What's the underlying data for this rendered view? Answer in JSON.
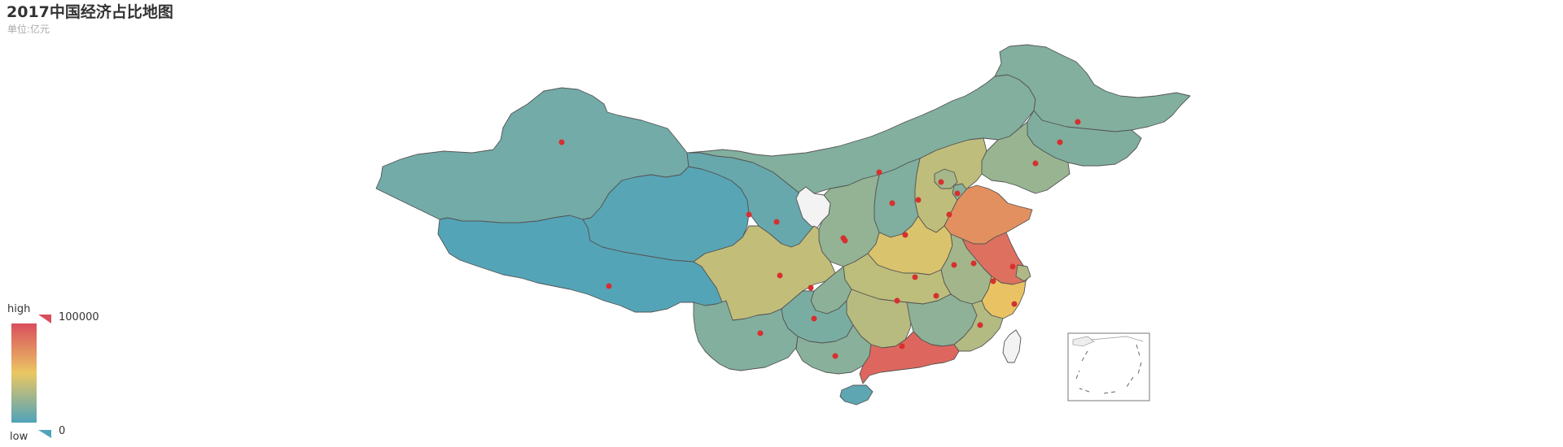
{
  "title": "2017中国经济占比地图",
  "subtitle": "单位:亿元",
  "visual_map": {
    "high_label": "high",
    "low_label": "low",
    "max_value": "100000",
    "min_value": "0",
    "colors": [
      "#50a3ba",
      "#eac763",
      "#d94e5d"
    ]
  },
  "colors": {
    "no_data": "#f3f3f3",
    "border": "#555555",
    "marker": "#d6302f",
    "inset_box": "#777777"
  },
  "regions": [
    {
      "id": "xinjiang",
      "value": 10882
    },
    {
      "id": "tibet",
      "value": 1311
    },
    {
      "id": "qinghai",
      "value": 2625
    },
    {
      "id": "gansu",
      "value": 7460
    },
    {
      "id": "ningxia",
      "value": null
    },
    {
      "id": "inner-mongolia",
      "value": 16103
    },
    {
      "id": "heilongjiang",
      "value": 16200
    },
    {
      "id": "jilin",
      "value": 15289
    },
    {
      "id": "liaoning",
      "value": 23409
    },
    {
      "id": "hebei",
      "value": 35964
    },
    {
      "id": "beijing",
      "value": 28015
    },
    {
      "id": "tianjin",
      "value": 18549
    },
    {
      "id": "shanxi",
      "value": 15528
    },
    {
      "id": "shaanxi",
      "value": 21899
    },
    {
      "id": "shandong",
      "value": 72634
    },
    {
      "id": "henan",
      "value": 44553
    },
    {
      "id": "jiangsu",
      "value": 85870
    },
    {
      "id": "anhui",
      "value": 27018
    },
    {
      "id": "shanghai",
      "value": 30633
    },
    {
      "id": "zhejiang",
      "value": 51768
    },
    {
      "id": "hubei",
      "value": 35478
    },
    {
      "id": "sichuan",
      "value": 36980
    },
    {
      "id": "chongqing",
      "value": 19425
    },
    {
      "id": "hunan",
      "value": 33903
    },
    {
      "id": "jiangxi",
      "value": 20006
    },
    {
      "id": "fujian",
      "value": 32182
    },
    {
      "id": "guizhou",
      "value": 13541
    },
    {
      "id": "yunnan",
      "value": 16376
    },
    {
      "id": "guangxi",
      "value": 18523
    },
    {
      "id": "guangdong",
      "value": 89705
    },
    {
      "id": "hainan",
      "value": 4462
    },
    {
      "id": "taiwan",
      "value": null
    }
  ]
}
